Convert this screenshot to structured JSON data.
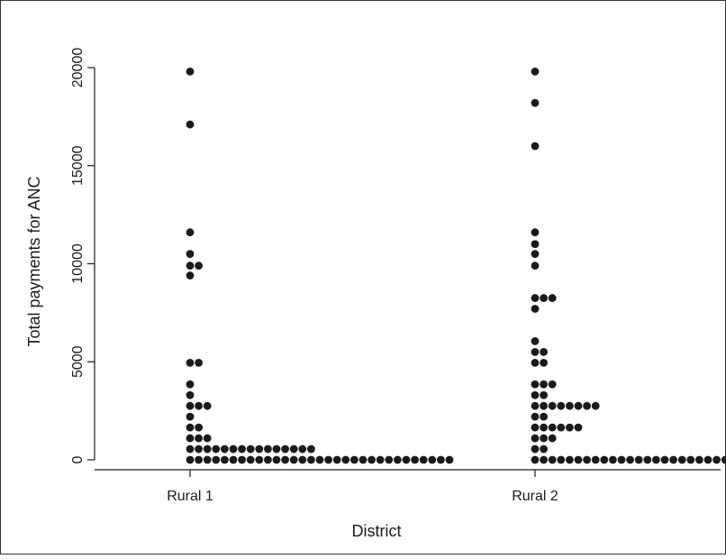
{
  "chart_data": {
    "type": "scatter",
    "subtype": "dot-strip",
    "xlabel": "District",
    "ylabel": "Total payments for ANC",
    "ylim": [
      0,
      20000
    ],
    "yticks": [
      0,
      5000,
      10000,
      15000,
      20000
    ],
    "yticklabels": [
      "0",
      "5000",
      "10000",
      "15000",
      "20000"
    ],
    "grid": false,
    "legend": "none",
    "marker_color": "#1a1a1a",
    "categories": [
      "Rural 1",
      "Rural 2"
    ],
    "groups": [
      {
        "category": "Rural 1",
        "points": [
          {
            "y": 19800,
            "count": 1
          },
          {
            "y": 17100,
            "count": 1
          },
          {
            "y": 11600,
            "count": 1
          },
          {
            "y": 10500,
            "count": 1
          },
          {
            "y": 9900,
            "count": 2
          },
          {
            "y": 9400,
            "count": 1
          },
          {
            "y": 4950,
            "count": 2
          },
          {
            "y": 3850,
            "count": 1
          },
          {
            "y": 3300,
            "count": 1
          },
          {
            "y": 2750,
            "count": 3
          },
          {
            "y": 2200,
            "count": 1
          },
          {
            "y": 1650,
            "count": 2
          },
          {
            "y": 1100,
            "count": 3
          },
          {
            "y": 550,
            "count": 15
          },
          {
            "y": 0,
            "count": 31
          }
        ]
      },
      {
        "category": "Rural 2",
        "points": [
          {
            "y": 19800,
            "count": 1
          },
          {
            "y": 18200,
            "count": 1
          },
          {
            "y": 16000,
            "count": 1
          },
          {
            "y": 11600,
            "count": 1
          },
          {
            "y": 11000,
            "count": 1
          },
          {
            "y": 10500,
            "count": 1
          },
          {
            "y": 9900,
            "count": 1
          },
          {
            "y": 8250,
            "count": 3
          },
          {
            "y": 7700,
            "count": 1
          },
          {
            "y": 6050,
            "count": 1
          },
          {
            "y": 5500,
            "count": 2
          },
          {
            "y": 4950,
            "count": 2
          },
          {
            "y": 3850,
            "count": 3
          },
          {
            "y": 3300,
            "count": 2
          },
          {
            "y": 2750,
            "count": 8
          },
          {
            "y": 2200,
            "count": 2
          },
          {
            "y": 1650,
            "count": 6
          },
          {
            "y": 1100,
            "count": 3
          },
          {
            "y": 550,
            "count": 2
          },
          {
            "y": 0,
            "count": 26
          }
        ]
      }
    ]
  }
}
